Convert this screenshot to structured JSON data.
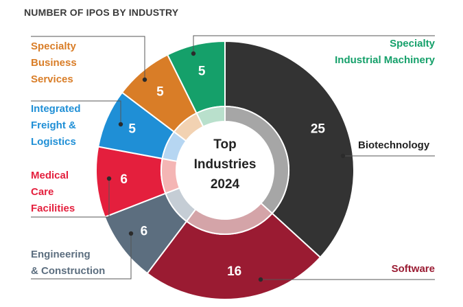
{
  "chart_data": {
    "type": "pie",
    "title": "NUMBER OF IPOS BY INDUSTRY",
    "center_label": [
      "Top",
      "Industries",
      "2024"
    ],
    "slices": [
      {
        "name": "Biotechnology",
        "label_lines": [
          "Biotechnology"
        ],
        "value": 25,
        "color": "#333333",
        "inner_color": "#a6a6a6"
      },
      {
        "name": "Software",
        "label_lines": [
          "Software"
        ],
        "value": 16,
        "color": "#9a1b32",
        "inner_color": "#d4a4a8"
      },
      {
        "name": "Engineering & Construction",
        "label_lines": [
          "Engineering",
          "& Construction"
        ],
        "value": 6,
        "color": "#5c6e7f",
        "inner_color": "#c5cdd5"
      },
      {
        "name": "Medical Care Facilities",
        "label_lines": [
          "Medical",
          "Care",
          "Facilities"
        ],
        "value": 6,
        "color": "#e41f3d",
        "inner_color": "#f4b5b4"
      },
      {
        "name": "Integrated Freight & Logistics",
        "label_lines": [
          "Integrated",
          "Freight &",
          "Logistics"
        ],
        "value": 5,
        "color": "#1f8fd6",
        "inner_color": "#b6d6f2"
      },
      {
        "name": "Specialty Business Services",
        "label_lines": [
          "Specialty",
          "Business",
          "Services"
        ],
        "value": 5,
        "color": "#d97d27",
        "inner_color": "#f2d2b2"
      },
      {
        "name": "Specialty Industrial Machinery",
        "label_lines": [
          "Specialty",
          "Industrial Machinery"
        ],
        "value": 5,
        "color": "#15a06a",
        "inner_color": "#b9e0cc"
      }
    ]
  }
}
